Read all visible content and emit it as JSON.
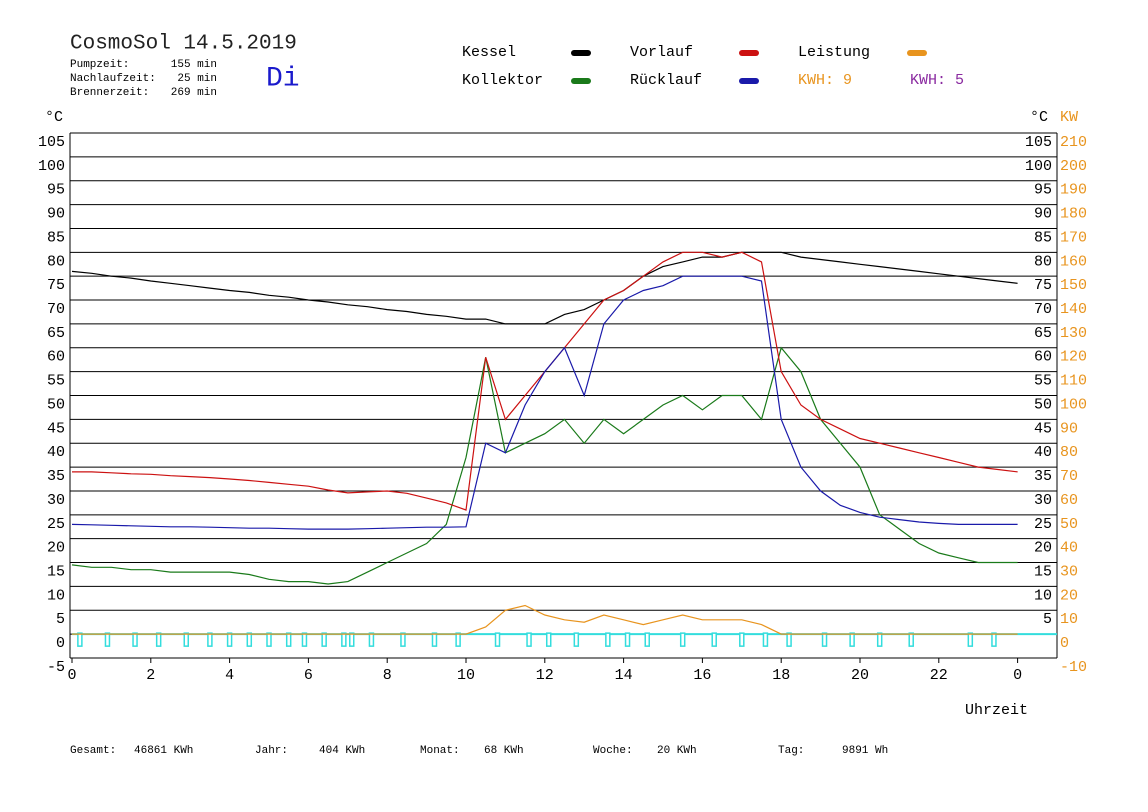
{
  "chart_data": {
    "type": "line",
    "title": "CosmoSol 14.5.2019",
    "weekday": "Di",
    "info": [
      {
        "label": "Pumpzeit:",
        "value": "155 min"
      },
      {
        "label": "Nachlaufzeit:",
        "value": "25 min"
      },
      {
        "label": "Brennerzeit:",
        "value": "269 min"
      }
    ],
    "y_unit": "°C",
    "y2_unit_left": "°C",
    "y2_unit": "KW",
    "x_label": "Uhrzeit",
    "kwh_labels": [
      {
        "text": "KWH: 9",
        "color": "#e8941e"
      },
      {
        "text": "KWH: 5",
        "color": "#8a2aa0"
      }
    ],
    "footer": [
      {
        "label": "Gesamt:",
        "value": "46861 KWh"
      },
      {
        "label": "Jahr:",
        "value": "404 KWh"
      },
      {
        "label": "Monat:",
        "value": "68 KWh"
      },
      {
        "label": "Woche:",
        "value": "20 KWh"
      },
      {
        "label": "Tag:",
        "value": "9891 Wh"
      }
    ],
    "xlim": [
      0,
      25
    ],
    "xticks": [
      0,
      2,
      4,
      6,
      8,
      10,
      12,
      14,
      16,
      18,
      20,
      22,
      {
        "value": 24,
        "label": "0"
      }
    ],
    "ylim": [
      -5,
      105
    ],
    "yticks": [
      -5,
      0,
      5,
      10,
      15,
      20,
      25,
      30,
      35,
      40,
      45,
      50,
      55,
      60,
      65,
      70,
      75,
      80,
      85,
      90,
      95,
      100,
      105
    ],
    "y2lim": [
      -10,
      210
    ],
    "y2ticks": [
      -10,
      0,
      10,
      20,
      30,
      40,
      50,
      60,
      70,
      80,
      90,
      100,
      110,
      120,
      130,
      140,
      150,
      160,
      170,
      180,
      190,
      200,
      210
    ],
    "grid": true,
    "x": [
      0,
      0.5,
      1,
      1.5,
      2,
      2.5,
      3,
      3.5,
      4,
      4.5,
      5,
      5.5,
      6,
      6.5,
      7,
      7.5,
      8,
      8.5,
      9,
      9.5,
      10,
      10.5,
      11,
      11.5,
      12,
      12.5,
      13,
      13.5,
      14,
      14.5,
      15,
      15.5,
      16,
      16.5,
      17,
      17.5,
      18,
      18.5,
      19,
      19.5,
      20,
      20.5,
      21,
      21.5,
      22,
      22.5,
      23,
      23.5,
      24
    ],
    "series": [
      {
        "name": "Kessel",
        "color": "#000000",
        "values": [
          76,
          75.6,
          75,
          74.6,
          74,
          73.5,
          73,
          72.5,
          72,
          71.6,
          71,
          70.6,
          70,
          69.6,
          69,
          68.6,
          68,
          67.6,
          67,
          66.6,
          66,
          66,
          65,
          65,
          65,
          67,
          68,
          70,
          72,
          75,
          77,
          78,
          79,
          79,
          80,
          80,
          80,
          79,
          78.5,
          78,
          77.5,
          77,
          76.5,
          76,
          75.5,
          75,
          74.5,
          74,
          73.5
        ]
      },
      {
        "name": "Kollektor",
        "color": "#1a7a1a",
        "values": [
          14.5,
          14,
          14,
          13.5,
          13.5,
          13,
          13,
          13,
          13,
          12.5,
          11.5,
          11,
          11,
          10.5,
          11,
          13,
          15,
          17,
          19,
          23,
          37,
          58,
          38,
          40,
          42,
          45,
          40,
          45,
          42,
          45,
          48,
          50,
          47,
          50,
          50,
          45,
          60,
          55,
          45,
          40,
          35,
          25,
          22,
          19,
          17,
          16,
          15,
          15,
          15
        ]
      },
      {
        "name": "Vorlauf",
        "color": "#cc1111",
        "values": [
          34,
          34,
          33.8,
          33.6,
          33.5,
          33.2,
          33,
          32.8,
          32.5,
          32.2,
          31.8,
          31.4,
          31,
          30.2,
          29.6,
          29.8,
          30,
          29.5,
          28.5,
          27.5,
          26,
          58,
          45,
          50,
          55,
          60,
          65,
          70,
          72,
          75,
          78,
          80,
          80,
          79,
          80,
          78,
          55,
          48,
          45,
          43,
          41,
          40,
          39,
          38,
          37,
          36,
          35,
          34.5,
          34
        ]
      },
      {
        "name": "Rücklauf",
        "color": "#1a1aaa",
        "values": [
          23,
          22.9,
          22.8,
          22.7,
          22.6,
          22.5,
          22.5,
          22.4,
          22.3,
          22.2,
          22.2,
          22.1,
          22,
          22,
          22,
          22.1,
          22.2,
          22.3,
          22.4,
          22.4,
          22.5,
          40,
          38,
          48,
          55,
          60,
          50,
          65,
          70,
          72,
          73,
          75,
          75,
          75,
          75,
          74,
          45,
          35,
          30,
          27,
          25.5,
          24.5,
          24,
          23.5,
          23.2,
          23,
          23,
          23,
          23
        ]
      },
      {
        "name": "Leistung",
        "color": "#e8941e",
        "axis": "y2",
        "values": [
          0,
          0,
          0,
          0,
          0,
          0,
          0,
          0,
          0,
          0,
          0,
          0,
          0,
          0,
          0,
          0,
          0,
          0,
          0,
          0,
          0,
          3,
          10,
          12,
          8,
          6,
          5,
          8,
          6,
          4,
          6,
          8,
          6,
          6,
          6,
          4,
          0,
          0,
          0,
          0,
          0,
          0,
          0,
          0,
          0,
          0,
          0,
          0,
          0
        ]
      }
    ],
    "pump_color": "#33dddd",
    "pump_times": [
      0.2,
      0.9,
      1.6,
      2.2,
      2.9,
      3.5,
      4.0,
      4.5,
      5.0,
      5.5,
      5.9,
      6.4,
      6.9,
      7.1,
      7.6,
      8.4,
      9.2,
      9.8,
      10.8,
      11.6,
      12.1,
      12.8,
      13.6,
      14.1,
      14.6,
      15.5,
      16.3,
      17.0,
      17.6,
      18.2,
      19.1,
      19.8,
      20.5,
      21.3,
      22.8,
      23.4
    ]
  }
}
